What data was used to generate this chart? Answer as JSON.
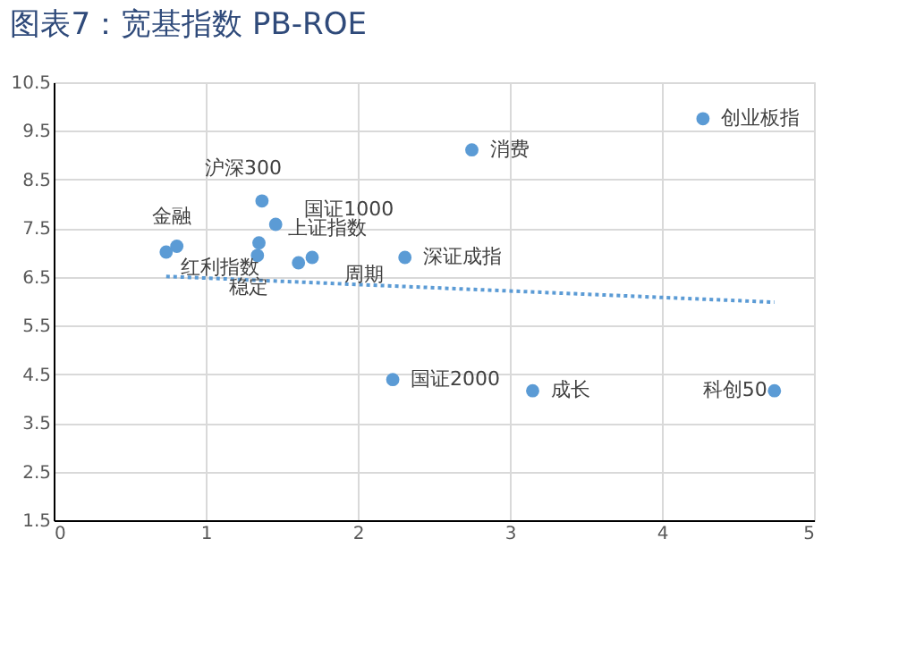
{
  "chart_data": {
    "type": "scatter",
    "title": "图表7：宽基指数 PB-ROE",
    "xlim": [
      0,
      5
    ],
    "xticks": [
      0,
      1,
      2,
      3,
      4,
      5
    ],
    "ylim": [
      1.5,
      10.5
    ],
    "yticks": [
      1.5,
      2.5,
      3.5,
      4.5,
      5.5,
      6.5,
      7.5,
      8.5,
      9.5,
      10.5
    ],
    "grid": true,
    "series": [
      {
        "color": "#5b9bd5",
        "marker": "circle",
        "x": [
          0.81,
          0.74,
          1.35,
          1.34,
          1.37,
          1.46,
          1.61,
          1.7,
          2.31,
          2.75,
          4.27,
          2.23,
          3.15,
          4.74
        ],
        "values": [
          7.13,
          7.01,
          7.2,
          6.94,
          8.06,
          7.58,
          6.79,
          6.9,
          6.9,
          9.11,
          9.75,
          4.39,
          4.16,
          4.16
        ]
      },
      {
        "type": "line",
        "line_style": "dotted",
        "color": "#5b9bd5",
        "x": [
          0.74,
          4.74
        ],
        "values": [
          6.51,
          5.98
        ]
      }
    ],
    "annotations": [
      {
        "text": "金融",
        "x": 0.81,
        "y": 7.13
      },
      {
        "text": "红利指数",
        "x": 0.74,
        "y": 7.01
      },
      {
        "text": "上证指数",
        "x": 1.35,
        "y": 7.2
      },
      {
        "text": "稳定",
        "x": 1.34,
        "y": 6.94
      },
      {
        "text": "沪深300",
        "x": 1.37,
        "y": 8.06
      },
      {
        "text": "国证1000",
        "x": 1.46,
        "y": 7.58
      },
      {
        "text": "周期",
        "x": 1.7,
        "y": 6.9
      },
      {
        "text": "深证成指",
        "x": 2.31,
        "y": 6.9
      },
      {
        "text": "消费",
        "x": 2.75,
        "y": 9.11
      },
      {
        "text": "创业板指",
        "x": 4.27,
        "y": 9.75
      },
      {
        "text": "国证2000",
        "x": 2.23,
        "y": 4.39
      },
      {
        "text": "成长",
        "x": 3.15,
        "y": 4.16
      },
      {
        "text": "科创50",
        "x": 4.74,
        "y": 4.16
      }
    ]
  }
}
